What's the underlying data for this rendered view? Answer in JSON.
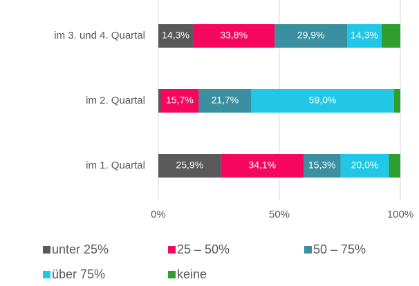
{
  "chart_data": {
    "type": "stacked-bar-horizontal",
    "categories": [
      "im 3. und 4.  Quartal",
      "im 2. Quartal",
      "im 1. Quartal"
    ],
    "series": [
      {
        "name": "unter 25%",
        "color": "#595959",
        "values": [
          14.3,
          1.0,
          25.9
        ],
        "value_labels": [
          "14,3%",
          null,
          "25,9%"
        ]
      },
      {
        "name": "25 – 50%",
        "color": "#f5075e",
        "values": [
          33.8,
          15.7,
          34.1
        ],
        "value_labels": [
          "33,8%",
          "15,7%",
          "34,1%"
        ]
      },
      {
        "name": "50 – 75%",
        "color": "#3a8fa1",
        "values": [
          29.9,
          21.7,
          15.3
        ],
        "value_labels": [
          "29,9%",
          "21,7%",
          "15,3%"
        ]
      },
      {
        "name": "über 75%",
        "color": "#22c7e6",
        "values": [
          14.3,
          59.0,
          20.0
        ],
        "value_labels": [
          "14,3%",
          "59,0%",
          "20,0%"
        ]
      },
      {
        "name": "keine",
        "color": "#2f9e2f",
        "values": [
          7.7,
          2.6,
          4.7
        ],
        "value_labels": [
          null,
          null,
          null
        ]
      }
    ],
    "xlim": [
      0,
      100
    ],
    "xticks": [
      {
        "value": 0,
        "label": "0%"
      },
      {
        "value": 50,
        "label": "50%"
      },
      {
        "value": 100,
        "label": "100%"
      }
    ],
    "grid": true
  }
}
